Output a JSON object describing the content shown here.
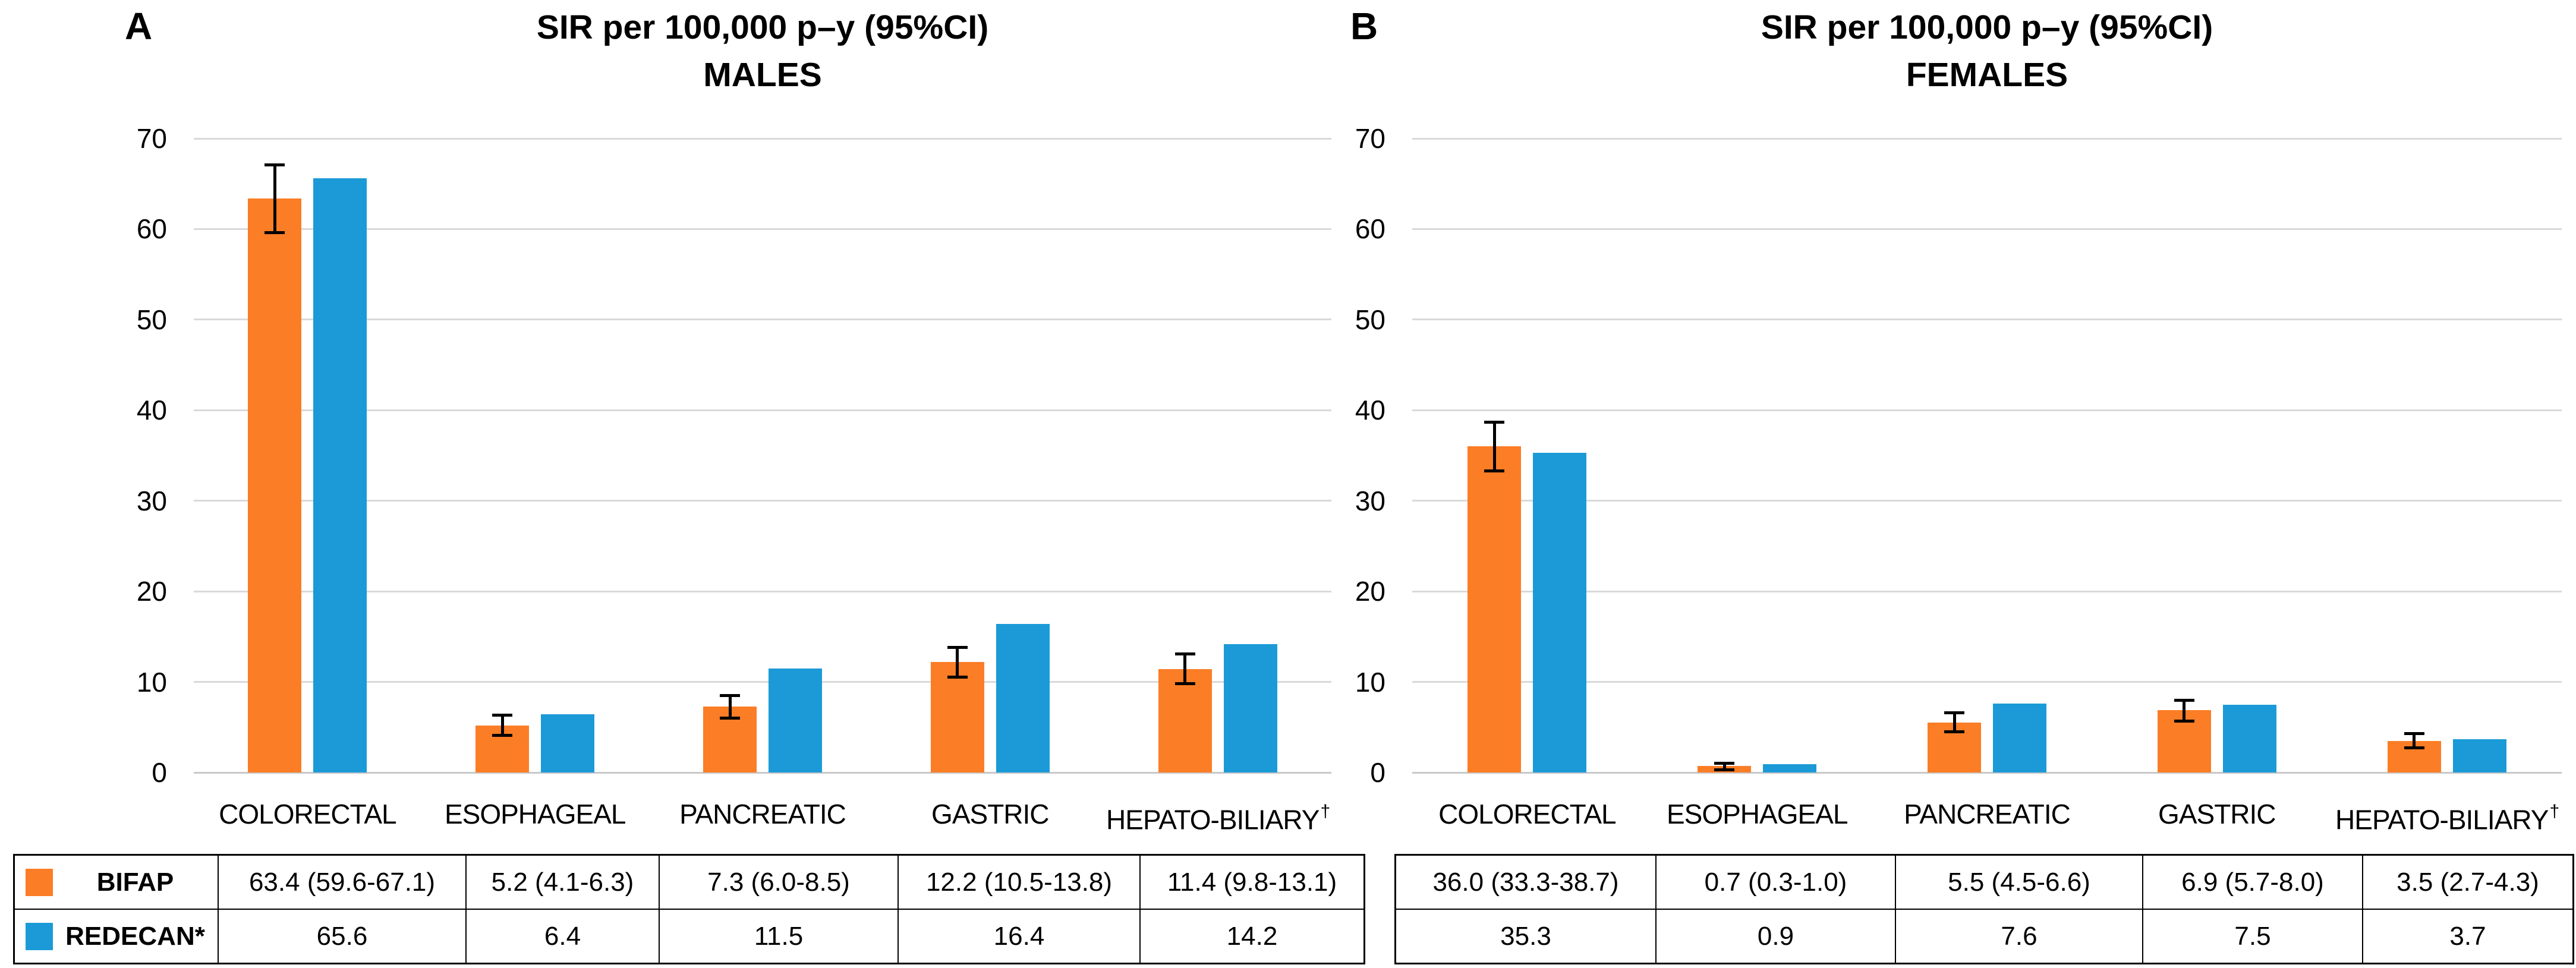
{
  "page": {
    "background": "#FFFFFF"
  },
  "legend": {
    "bifap_label": "BIFAP",
    "redecan_label": "REDECAN*"
  },
  "colors": {
    "bifap": "#FB7D26",
    "redecan": "#1B9AD7",
    "gridline": "#D9D9D9",
    "axis_line": "#C9C9C9",
    "error_bar": "#000000",
    "table_border": "#000000",
    "text": "#000000"
  },
  "chart_data": [
    {
      "type": "bar",
      "panel": "A",
      "title": "SIR per 100,000 p–y (95%CI)",
      "subtitle": "MALES",
      "categories": [
        "COLORECTAL",
        "ESOPHAGEAL",
        "PANCREATIC",
        "GASTRIC",
        "HEPATO-BILIARY†"
      ],
      "ylim": [
        0,
        70
      ],
      "ytick_step": 10,
      "grid": true,
      "legend_position": "table-left",
      "series": [
        {
          "name": "BIFAP",
          "color_key": "bifap",
          "values": [
            63.4,
            5.2,
            7.3,
            12.2,
            11.4
          ],
          "ci_low": [
            59.6,
            4.1,
            6.0,
            10.5,
            9.8
          ],
          "ci_high": [
            67.1,
            6.3,
            8.5,
            13.8,
            13.1
          ],
          "table_labels": [
            "63.4 (59.6-67.1)",
            "5.2 (4.1-6.3)",
            "7.3 (6.0-8.5)",
            "12.2 (10.5-13.8)",
            "11.4  (9.8-13.1)"
          ]
        },
        {
          "name": "REDECAN*",
          "color_key": "redecan",
          "values": [
            65.6,
            6.4,
            11.5,
            16.4,
            14.2
          ],
          "table_labels": [
            "65.6",
            "6.4",
            "11.5",
            "16.4",
            "14.2"
          ]
        }
      ]
    },
    {
      "type": "bar",
      "panel": "B",
      "title": "SIR per 100,000 p–y (95%CI)",
      "subtitle": "FEMALES",
      "categories": [
        "COLORECTAL",
        "ESOPHAGEAL",
        "PANCREATIC",
        "GASTRIC",
        "HEPATO-BILIARY†"
      ],
      "ylim": [
        0,
        70
      ],
      "ytick_step": 10,
      "grid": true,
      "legend_position": "none",
      "series": [
        {
          "name": "BIFAP",
          "color_key": "bifap",
          "values": [
            36.0,
            0.7,
            5.5,
            6.9,
            3.5
          ],
          "ci_low": [
            33.3,
            0.3,
            4.5,
            5.7,
            2.7
          ],
          "ci_high": [
            38.7,
            1.0,
            6.6,
            8.0,
            4.3
          ],
          "table_labels": [
            "36.0 (33.3-38.7)",
            "0.7 (0.3-1.0)",
            "5.5 (4.5-6.6)",
            "6.9 (5.7-8.0)",
            "3.5 (2.7-4.3)"
          ]
        },
        {
          "name": "REDECAN*",
          "color_key": "redecan",
          "values": [
            35.3,
            0.9,
            7.6,
            7.5,
            3.7
          ],
          "table_labels": [
            "35.3",
            "0.9",
            "7.6",
            "7.5",
            "3.7"
          ]
        }
      ]
    }
  ]
}
